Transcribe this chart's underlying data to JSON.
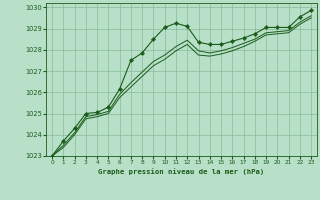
{
  "title": "Graphe pression niveau de la mer (hPa)",
  "background_color": "#b8dfc8",
  "grid_color": "#88bb99",
  "line_color": "#1a5c1a",
  "marker_color": "#1a5c1a",
  "xlim": [
    -0.5,
    23.5
  ],
  "ylim": [
    1023,
    1030.2
  ],
  "xticks": [
    0,
    1,
    2,
    3,
    4,
    5,
    6,
    7,
    8,
    9,
    10,
    11,
    12,
    13,
    14,
    15,
    16,
    17,
    18,
    19,
    20,
    21,
    22,
    23
  ],
  "yticks": [
    1023,
    1024,
    1025,
    1026,
    1027,
    1028,
    1029,
    1030
  ],
  "series1_x": [
    0,
    1,
    2,
    3,
    4,
    5,
    6,
    7,
    8,
    9,
    10,
    11,
    12,
    13,
    14,
    15,
    16,
    17,
    18,
    19,
    20,
    21,
    22,
    23
  ],
  "series1_y": [
    1023.0,
    1023.7,
    1024.3,
    1025.0,
    1025.05,
    1025.3,
    1026.15,
    1027.5,
    1027.85,
    1028.5,
    1029.05,
    1029.25,
    1029.1,
    1028.35,
    1028.25,
    1028.25,
    1028.4,
    1028.55,
    1028.75,
    1029.05,
    1029.05,
    1029.05,
    1029.55,
    1029.85
  ],
  "series2_x": [
    0,
    1,
    2,
    3,
    4,
    5,
    6,
    7,
    8,
    9,
    10,
    11,
    12,
    13,
    14,
    15,
    16,
    17,
    18,
    19,
    20,
    21,
    22,
    23
  ],
  "series2_y": [
    1023.0,
    1023.5,
    1024.1,
    1024.85,
    1024.95,
    1025.1,
    1025.9,
    1026.45,
    1026.95,
    1027.45,
    1027.75,
    1028.15,
    1028.45,
    1027.95,
    1027.85,
    1027.95,
    1028.1,
    1028.3,
    1028.5,
    1028.8,
    1028.85,
    1028.9,
    1029.3,
    1029.6
  ],
  "series3_x": [
    0,
    1,
    2,
    3,
    4,
    5,
    6,
    7,
    8,
    9,
    10,
    11,
    12,
    13,
    14,
    15,
    16,
    17,
    18,
    19,
    20,
    21,
    22,
    23
  ],
  "series3_y": [
    1023.0,
    1023.4,
    1024.0,
    1024.75,
    1024.85,
    1025.0,
    1025.75,
    1026.25,
    1026.75,
    1027.25,
    1027.55,
    1027.95,
    1028.25,
    1027.75,
    1027.7,
    1027.8,
    1027.95,
    1028.15,
    1028.4,
    1028.7,
    1028.75,
    1028.8,
    1029.2,
    1029.5
  ]
}
